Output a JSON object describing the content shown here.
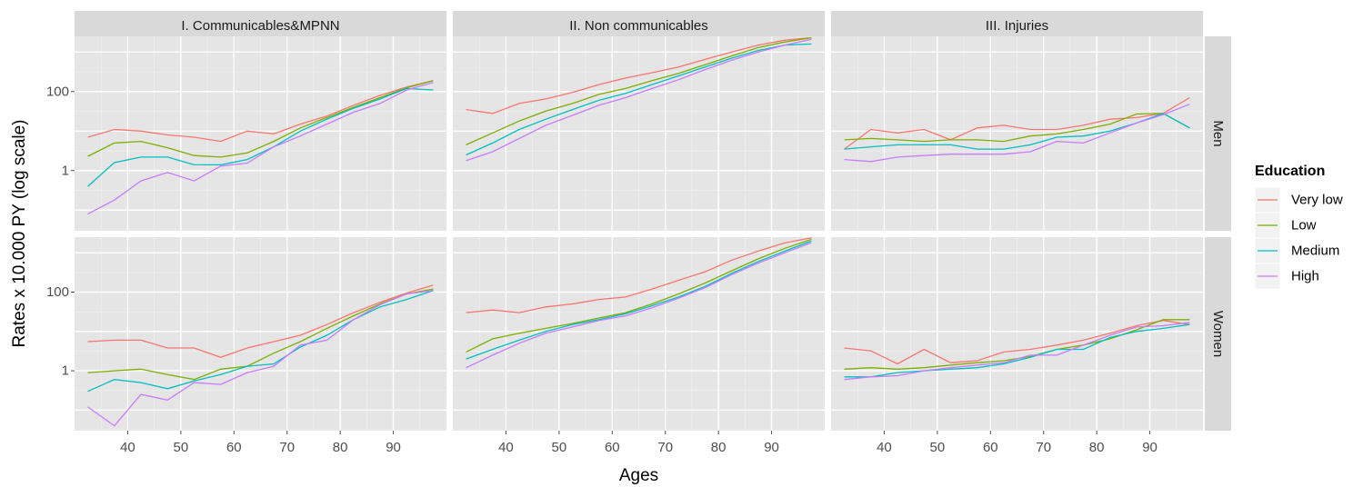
{
  "chart_data": {
    "type": "line",
    "ylabel": "Rates x 10.000 PY (log scale)",
    "xlabel": "Ages",
    "y_scale": "log",
    "grid": true,
    "legend_placement": "right",
    "ylim": [
      0.03,
      2500
    ],
    "xlim": [
      30,
      100
    ],
    "x_ticks": [
      40,
      50,
      60,
      70,
      80,
      90
    ],
    "y_ticks": [
      1,
      100
    ],
    "y_tick_labels": [
      "1",
      "100"
    ],
    "columns": [
      "I. Communicables&MPNN",
      "II. Non communicables",
      "III. Injuries"
    ],
    "rows": [
      "Men",
      "Women"
    ],
    "legend": {
      "title": "Education",
      "entries": [
        "Very low",
        "Low",
        "Medium",
        "High"
      ]
    },
    "colors": {
      "Very low": "#F8766D",
      "Low": "#7CAE00",
      "Medium": "#00BFC4",
      "High": "#C77CFF"
    },
    "x": [
      32.5,
      37.5,
      42.5,
      47.5,
      52.5,
      57.5,
      62.5,
      67.5,
      72.5,
      77.5,
      82.5,
      87.5,
      92.5,
      97.5
    ],
    "panels": [
      {
        "column": "I. Communicables&MPNN",
        "row": "Men",
        "series": [
          {
            "name": "Very low",
            "values": [
              7,
              11,
              10,
              8,
              7,
              5.5,
              10,
              8.5,
              15,
              24,
              45,
              80,
              130,
              190
            ]
          },
          {
            "name": "Low",
            "values": [
              2.3,
              5,
              5.5,
              3.8,
              2.4,
              2.2,
              2.8,
              5.5,
              12,
              22,
              40,
              70,
              125,
              190
            ]
          },
          {
            "name": "Medium",
            "values": [
              0.4,
              1.6,
              2.2,
              2.2,
              1.4,
              1.4,
              1.9,
              4,
              10,
              20,
              38,
              65,
              120,
              110
            ]
          },
          {
            "name": "High",
            "values": [
              0.08,
              0.18,
              0.55,
              0.9,
              0.55,
              1.3,
              1.55,
              4,
              7.5,
              15,
              30,
              50,
              110,
              170
            ]
          }
        ]
      },
      {
        "column": "II. Non communicables",
        "row": "Men",
        "series": [
          {
            "name": "Very low",
            "values": [
              35,
              28,
              50,
              65,
              95,
              150,
              220,
              300,
              420,
              650,
              1000,
              1500,
              2000,
              2300
            ]
          },
          {
            "name": "Low",
            "values": [
              4.5,
              9,
              18,
              32,
              50,
              85,
              120,
              190,
              290,
              480,
              800,
              1300,
              1800,
              2300
            ]
          },
          {
            "name": "Medium",
            "values": [
              2.5,
              5,
              11,
              20,
              35,
              60,
              90,
              150,
              250,
              420,
              700,
              1100,
              1500,
              1600
            ]
          },
          {
            "name": "High",
            "values": [
              1.8,
              3,
              6.5,
              14,
              25,
              45,
              70,
              120,
              200,
              360,
              620,
              1000,
              1500,
              2100
            ]
          }
        ]
      },
      {
        "column": "III. Injuries",
        "row": "Men",
        "series": [
          {
            "name": "Very low",
            "values": [
              3.5,
              11,
              9,
              11,
              6,
              12,
              14,
              11,
              11,
              14,
              20,
              22,
              28,
              70
            ]
          },
          {
            "name": "Low",
            "values": [
              6,
              6.5,
              6,
              5.5,
              6,
              6,
              5.5,
              7.5,
              8.5,
              11,
              15,
              27,
              28,
              12
            ]
          },
          {
            "name": "Medium",
            "values": [
              3.5,
              4,
              4.5,
              4.5,
              4.5,
              3.5,
              3.5,
              4.5,
              7,
              7.5,
              10,
              16,
              28,
              12
            ]
          },
          {
            "name": "High",
            "values": [
              1.9,
              1.7,
              2.2,
              2.4,
              2.6,
              2.6,
              2.6,
              3,
              5.5,
              5,
              9,
              16,
              26,
              48
            ]
          }
        ]
      },
      {
        "column": "I. Communicables&MPNN",
        "row": "Women",
        "series": [
          {
            "name": "Very low",
            "values": [
              5.5,
              6,
              6,
              3.8,
              3.8,
              2.2,
              3.8,
              5.5,
              8,
              15,
              30,
              55,
              95,
              150
            ]
          },
          {
            "name": "Low",
            "values": [
              0.9,
              1,
              1.1,
              0.8,
              0.6,
              1.1,
              1.3,
              2.8,
              5.5,
              12,
              25,
              50,
              90,
              120
            ]
          },
          {
            "name": "Medium",
            "values": [
              0.3,
              0.6,
              0.5,
              0.35,
              0.55,
              0.8,
              1.3,
              1.5,
              4,
              8,
              20,
              42,
              65,
              110
            ]
          },
          {
            "name": "High",
            "values": [
              0.12,
              0.04,
              0.25,
              0.18,
              0.5,
              0.45,
              0.9,
              1.3,
              4.5,
              6,
              20,
              48,
              90,
              110
            ]
          }
        ]
      },
      {
        "column": "II. Non communicables",
        "row": "Women",
        "series": [
          {
            "name": "Very low",
            "values": [
              30,
              35,
              30,
              42,
              50,
              65,
              75,
              120,
              200,
              330,
              650,
              1100,
              1800,
              2400
            ]
          },
          {
            "name": "Low",
            "values": [
              3,
              6.5,
              9,
              12,
              16,
              22,
              30,
              50,
              90,
              170,
              350,
              700,
              1300,
              2200
            ]
          },
          {
            "name": "Medium",
            "values": [
              2,
              3.5,
              6,
              10,
              15,
              20,
              28,
              45,
              75,
              140,
              300,
              600,
              1100,
              2000
            ]
          },
          {
            "name": "High",
            "values": [
              1.2,
              2.5,
              5,
              9,
              13,
              19,
              25,
              40,
              70,
              130,
              280,
              550,
              1000,
              1800
            ]
          }
        ]
      },
      {
        "column": "III. Injuries",
        "row": "Women",
        "series": [
          {
            "name": "Very low",
            "values": [
              3.8,
              3.2,
              1.5,
              3.5,
              1.6,
              1.8,
              3,
              3.5,
              4.5,
              6,
              9,
              14,
              19,
              15
            ]
          },
          {
            "name": "Low",
            "values": [
              1.1,
              1.2,
              1.1,
              1.2,
              1.4,
              1.6,
              1.8,
              2.3,
              3.5,
              4.5,
              6.5,
              11,
              20,
              20
            ]
          },
          {
            "name": "Medium",
            "values": [
              0.7,
              0.7,
              0.9,
              1,
              1.1,
              1.2,
              1.5,
              2.2,
              3.5,
              3.5,
              7,
              10,
              12,
              15
            ]
          },
          {
            "name": "High",
            "values": [
              0.6,
              0.7,
              0.75,
              1,
              1.2,
              1.4,
              1.6,
              2.5,
              2.5,
              4.5,
              8,
              13,
              14,
              17
            ]
          }
        ]
      }
    ]
  }
}
